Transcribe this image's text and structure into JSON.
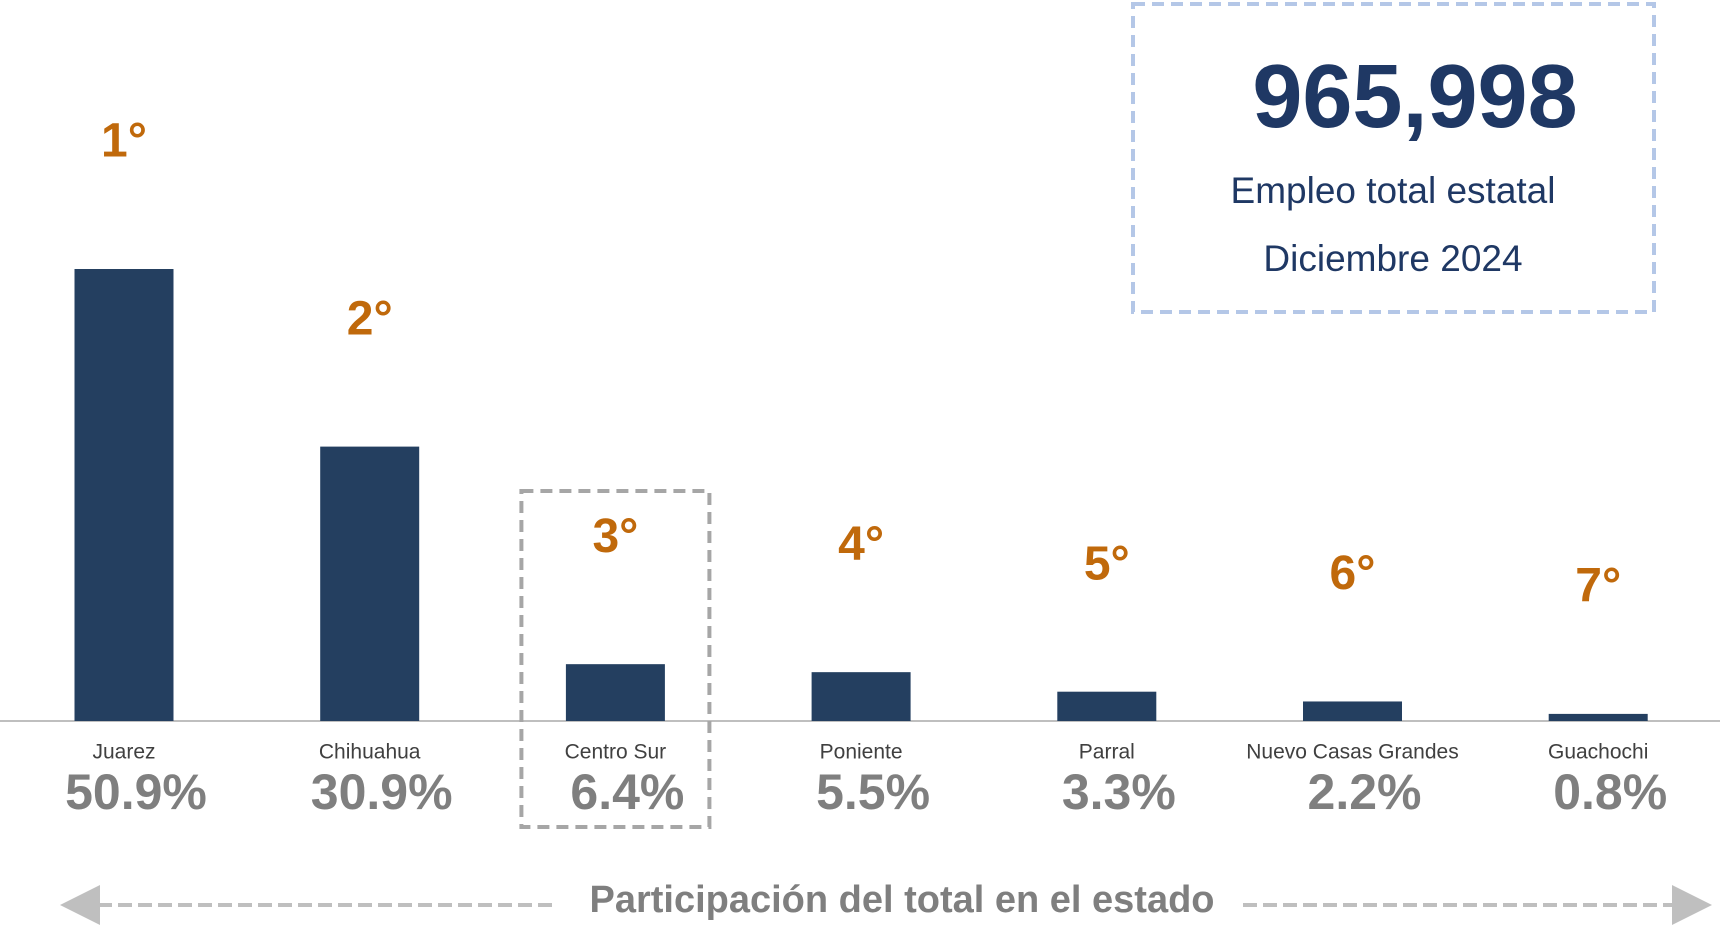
{
  "chart_data": {
    "type": "bar",
    "categories": [
      "Juarez",
      "Chihuahua",
      "Centro Sur",
      "Poniente",
      "Parral",
      "Nuevo Casas Grandes",
      "Guachochi"
    ],
    "values": [
      50.9,
      30.9,
      6.4,
      5.5,
      3.3,
      2.2,
      0.8
    ],
    "value_labels": [
      "50.9%",
      "30.9%",
      "6.4%",
      "5.5%",
      "3.3%",
      "2.2%",
      "0.8%"
    ],
    "ranks": [
      "1°",
      "2°",
      "3°",
      "4°",
      "5°",
      "6°",
      "7°"
    ],
    "color": "#243f60",
    "highlight": "Centro Sur",
    "x_label": "Participación del total en el estado",
    "summary": {
      "number": "965,998",
      "label": "Empleo total estatal",
      "date": "Diciembre 2024"
    }
  }
}
